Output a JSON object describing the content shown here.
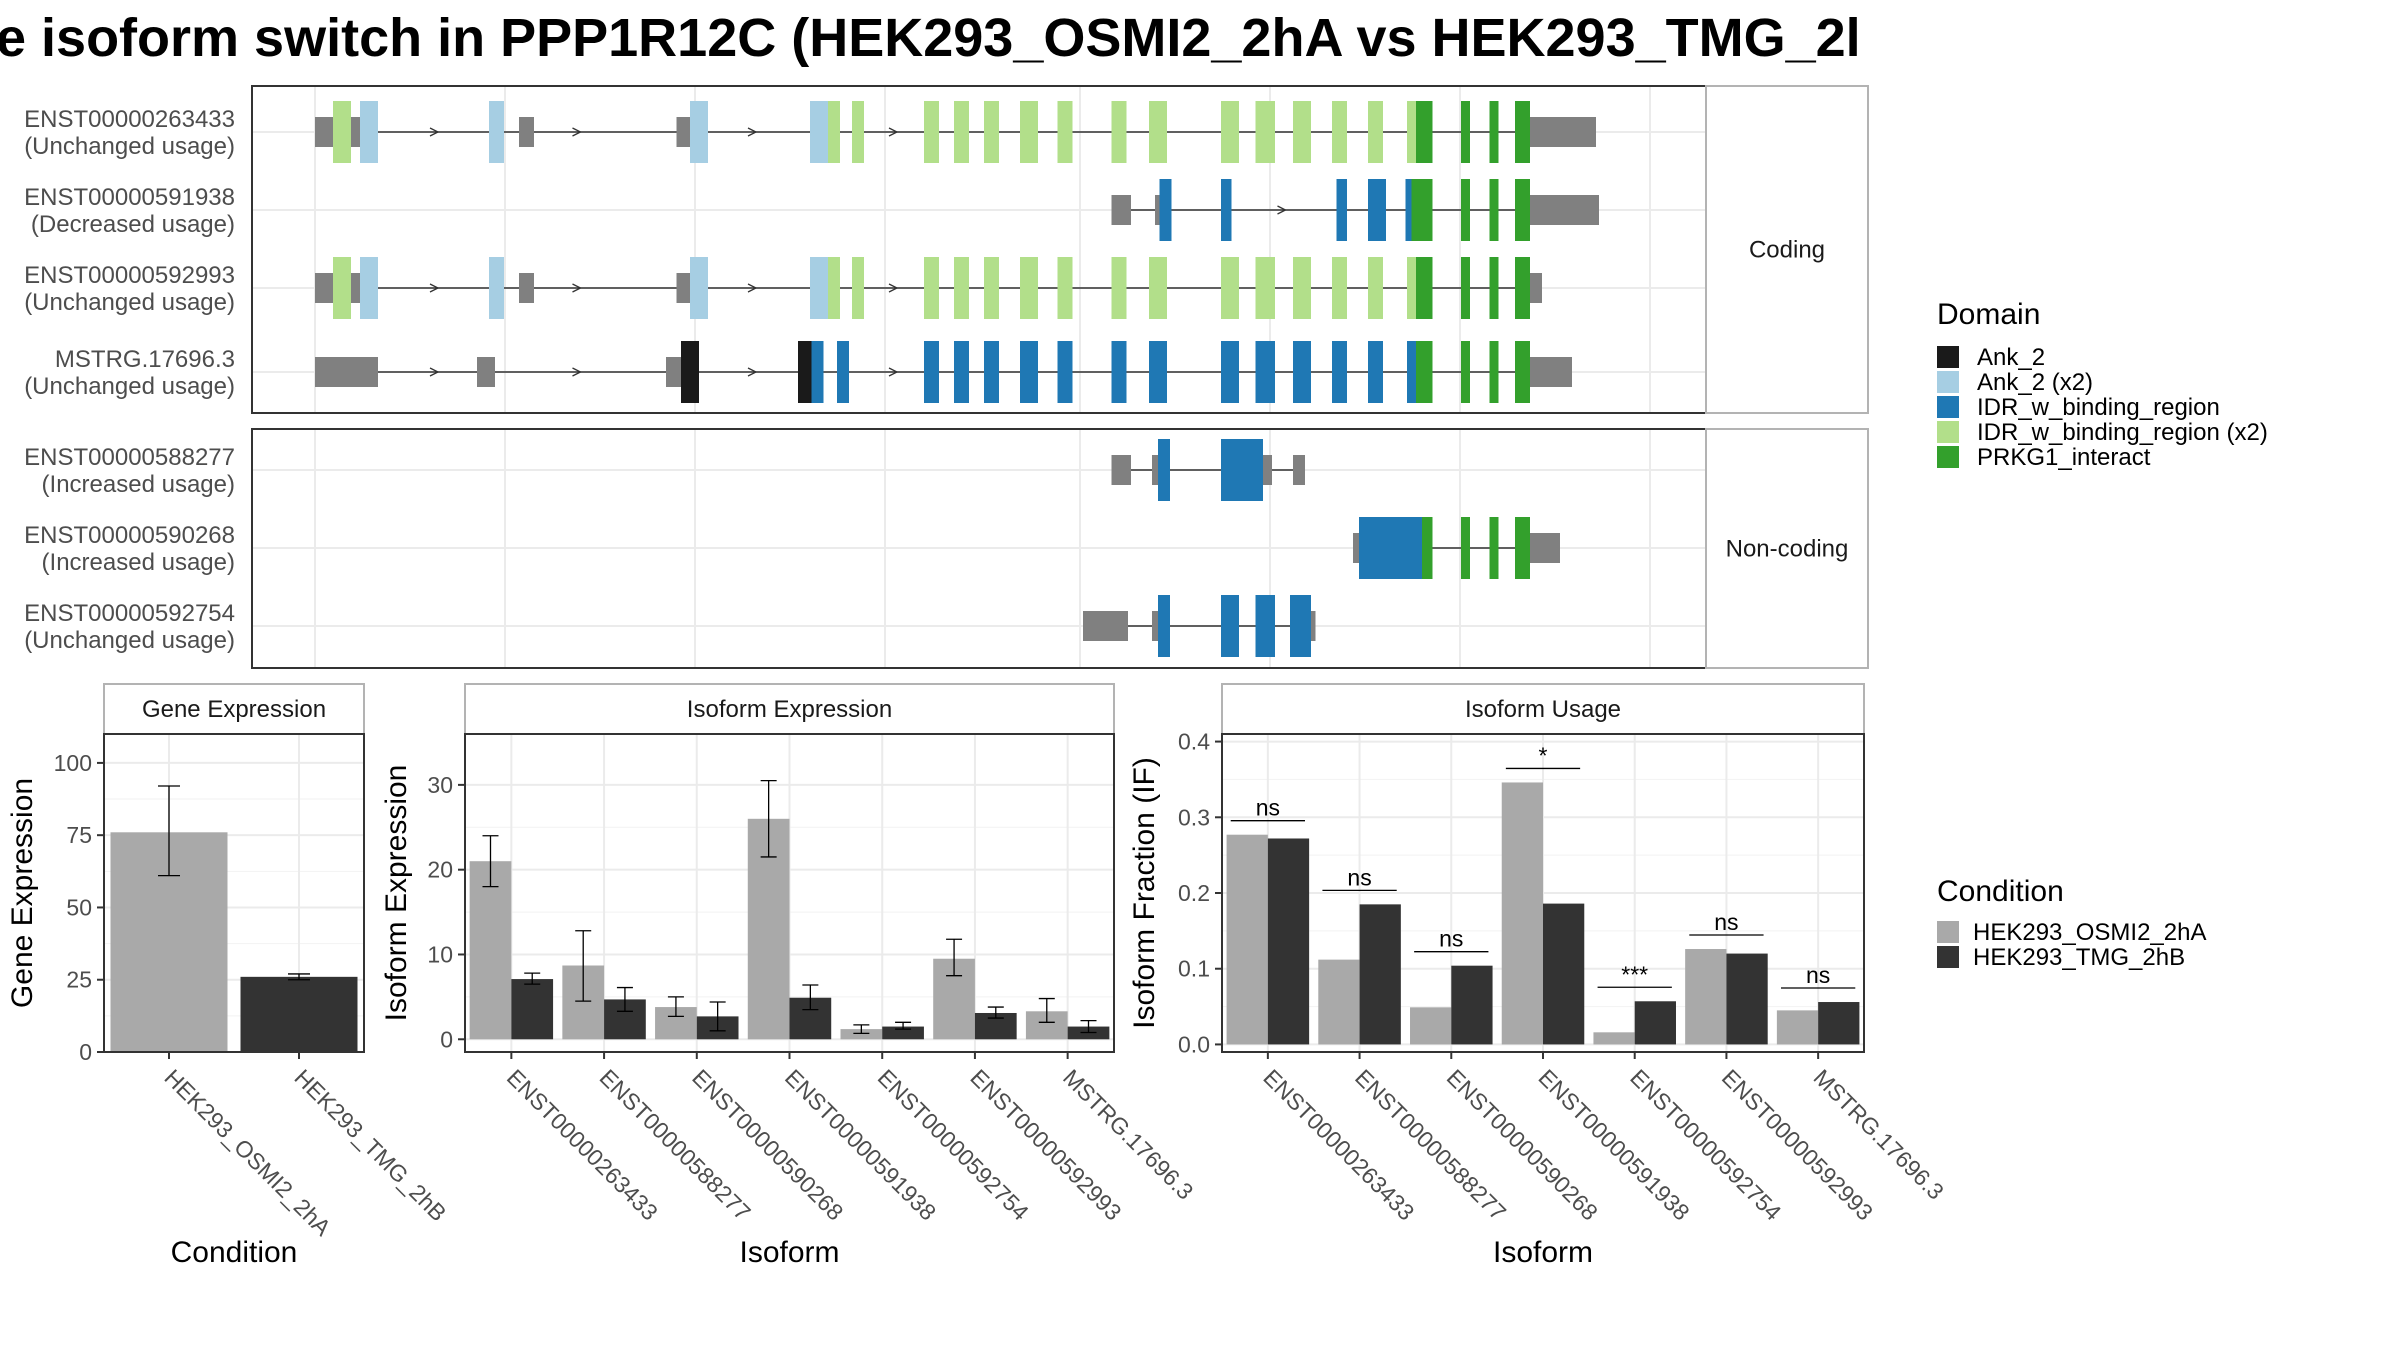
{
  "title": "e isoform switch in PPP1R12C (HEK293_OSMI2_2hA vs HEK293_TMG_2l",
  "colors": {
    "Ank_2": "#1a1a1a",
    "Ank_2 (x2)": "#a6cee3",
    "IDR_w_binding_region": "#1f78b4",
    "IDR_w_binding_region (x2)": "#b2df8a",
    "PRKG1_interact": "#33a02c",
    "utr": "#808080",
    "cond1": "#a9a9a9",
    "cond2": "#333333"
  },
  "transcripts": {
    "coding_strip_label": "Coding",
    "noncoding_strip_label": "Non-coding",
    "coding": [
      {
        "id": "ENST00000263433",
        "usage": "(Unchanged usage)",
        "blocks": [
          [
            0,
            12,
            "utr"
          ],
          [
            12,
            24,
            "IDR_w_binding_region (x2)"
          ],
          [
            24,
            30,
            "utr"
          ],
          [
            30,
            42,
            "Ank_2 (x2)"
          ],
          [
            116,
            126,
            "Ank_2 (x2)"
          ],
          [
            136,
            146,
            "utr"
          ],
          [
            241,
            250,
            "utr"
          ],
          [
            250,
            262,
            "Ank_2 (x2)"
          ],
          [
            330,
            342,
            "Ank_2 (x2)"
          ],
          [
            342,
            350,
            "IDR_w_binding_region (x2)"
          ],
          [
            358,
            366,
            "IDR_w_binding_region (x2)"
          ],
          [
            406,
            416,
            "IDR_w_binding_region (x2)"
          ],
          [
            426,
            436,
            "IDR_w_binding_region (x2)"
          ],
          [
            446,
            456,
            "IDR_w_binding_region (x2)"
          ],
          [
            470,
            482,
            "IDR_w_binding_region (x2)"
          ],
          [
            495,
            505,
            "IDR_w_binding_region (x2)"
          ],
          [
            531,
            541,
            "IDR_w_binding_region (x2)"
          ],
          [
            556,
            568,
            "IDR_w_binding_region (x2)"
          ],
          [
            604,
            616,
            "IDR_w_binding_region (x2)"
          ],
          [
            627,
            640,
            "IDR_w_binding_region (x2)"
          ],
          [
            652,
            664,
            "IDR_w_binding_region (x2)"
          ],
          [
            678,
            688,
            "IDR_w_binding_region (x2)"
          ],
          [
            702,
            712,
            "IDR_w_binding_region (x2)"
          ],
          [
            728,
            734,
            "IDR_w_binding_region (x2)"
          ],
          [
            734,
            745,
            "PRKG1_interact"
          ],
          [
            764,
            770,
            "PRKG1_interact"
          ],
          [
            783,
            789,
            "PRKG1_interact"
          ],
          [
            800,
            810,
            "PRKG1_interact"
          ],
          [
            810,
            854,
            "utr"
          ]
        ],
        "arrows": [
          80,
          175,
          292,
          386,
          410
        ]
      },
      {
        "id": "ENST00000591938",
        "usage": "(Decreased usage)",
        "blocks": [
          [
            531,
            544,
            "utr"
          ],
          [
            560,
            563,
            "utr"
          ],
          [
            563,
            571,
            "IDR_w_binding_region"
          ],
          [
            604,
            611,
            "IDR_w_binding_region"
          ],
          [
            681,
            688,
            "IDR_w_binding_region"
          ],
          [
            702,
            714,
            "IDR_w_binding_region"
          ],
          [
            727,
            731,
            "IDR_w_binding_region"
          ],
          [
            731,
            745,
            "PRKG1_interact"
          ],
          [
            764,
            770,
            "PRKG1_interact"
          ],
          [
            783,
            789,
            "PRKG1_interact"
          ],
          [
            800,
            810,
            "PRKG1_interact"
          ],
          [
            810,
            856,
            "utr"
          ]
        ],
        "arrows": [
          645
        ]
      },
      {
        "id": "ENST00000592993",
        "usage": "(Unchanged usage)",
        "blocks": [
          [
            0,
            12,
            "utr"
          ],
          [
            12,
            24,
            "IDR_w_binding_region (x2)"
          ],
          [
            24,
            30,
            "utr"
          ],
          [
            30,
            42,
            "Ank_2 (x2)"
          ],
          [
            116,
            126,
            "Ank_2 (x2)"
          ],
          [
            136,
            146,
            "utr"
          ],
          [
            241,
            250,
            "utr"
          ],
          [
            250,
            262,
            "Ank_2 (x2)"
          ],
          [
            330,
            342,
            "Ank_2 (x2)"
          ],
          [
            342,
            350,
            "IDR_w_binding_region (x2)"
          ],
          [
            358,
            366,
            "IDR_w_binding_region (x2)"
          ],
          [
            406,
            416,
            "IDR_w_binding_region (x2)"
          ],
          [
            426,
            436,
            "IDR_w_binding_region (x2)"
          ],
          [
            446,
            456,
            "IDR_w_binding_region (x2)"
          ],
          [
            470,
            482,
            "IDR_w_binding_region (x2)"
          ],
          [
            495,
            505,
            "IDR_w_binding_region (x2)"
          ],
          [
            531,
            541,
            "IDR_w_binding_region (x2)"
          ],
          [
            556,
            568,
            "IDR_w_binding_region (x2)"
          ],
          [
            604,
            616,
            "IDR_w_binding_region (x2)"
          ],
          [
            627,
            640,
            "IDR_w_binding_region (x2)"
          ],
          [
            652,
            664,
            "IDR_w_binding_region (x2)"
          ],
          [
            678,
            688,
            "IDR_w_binding_region (x2)"
          ],
          [
            702,
            712,
            "IDR_w_binding_region (x2)"
          ],
          [
            728,
            734,
            "IDR_w_binding_region (x2)"
          ],
          [
            734,
            745,
            "PRKG1_interact"
          ],
          [
            764,
            770,
            "PRKG1_interact"
          ],
          [
            783,
            789,
            "PRKG1_interact"
          ],
          [
            800,
            810,
            "PRKG1_interact"
          ],
          [
            810,
            818,
            "utr"
          ]
        ],
        "arrows": [
          80,
          175,
          292,
          386,
          410
        ]
      },
      {
        "id": "MSTRG.17696.3",
        "usage": "(Unchanged usage)",
        "blocks": [
          [
            0,
            42,
            "utr"
          ],
          [
            108,
            120,
            "utr"
          ],
          [
            234,
            244,
            "utr"
          ],
          [
            244,
            250,
            "Ank_2"
          ],
          [
            250,
            256,
            "Ank_2"
          ],
          [
            322,
            331,
            "Ank_2"
          ],
          [
            331,
            339,
            "IDR_w_binding_region"
          ],
          [
            348,
            356,
            "IDR_w_binding_region"
          ],
          [
            406,
            416,
            "IDR_w_binding_region"
          ],
          [
            426,
            436,
            "IDR_w_binding_region"
          ],
          [
            446,
            456,
            "IDR_w_binding_region"
          ],
          [
            470,
            482,
            "IDR_w_binding_region"
          ],
          [
            495,
            505,
            "IDR_w_binding_region"
          ],
          [
            531,
            541,
            "IDR_w_binding_region"
          ],
          [
            556,
            568,
            "IDR_w_binding_region"
          ],
          [
            604,
            616,
            "IDR_w_binding_region"
          ],
          [
            627,
            640,
            "IDR_w_binding_region"
          ],
          [
            652,
            664,
            "IDR_w_binding_region"
          ],
          [
            678,
            688,
            "IDR_w_binding_region"
          ],
          [
            702,
            712,
            "IDR_w_binding_region"
          ],
          [
            728,
            734,
            "IDR_w_binding_region"
          ],
          [
            734,
            745,
            "PRKG1_interact"
          ],
          [
            764,
            770,
            "PRKG1_interact"
          ],
          [
            783,
            789,
            "PRKG1_interact"
          ],
          [
            800,
            810,
            "PRKG1_interact"
          ],
          [
            810,
            838,
            "utr"
          ]
        ],
        "arrows": [
          80,
          175,
          292,
          386,
          410
        ]
      }
    ],
    "noncoding": [
      {
        "id": "ENST00000588277",
        "usage": "(Increased usage)",
        "blocks": [
          [
            531,
            544,
            "utr"
          ],
          [
            558,
            562,
            "utr"
          ],
          [
            562,
            570,
            "IDR_w_binding_region"
          ],
          [
            604,
            632,
            "IDR_w_binding_region"
          ],
          [
            632,
            638,
            "utr"
          ],
          [
            652,
            660,
            "utr"
          ]
        ],
        "arrows": []
      },
      {
        "id": "ENST00000590268",
        "usage": "(Increased usage)",
        "blocks": [
          [
            692,
            696,
            "utr"
          ],
          [
            696,
            738,
            "IDR_w_binding_region"
          ],
          [
            738,
            745,
            "PRKG1_interact"
          ],
          [
            764,
            770,
            "PRKG1_interact"
          ],
          [
            783,
            789,
            "PRKG1_interact"
          ],
          [
            800,
            810,
            "PRKG1_interact"
          ],
          [
            810,
            830,
            "utr"
          ]
        ],
        "arrows": []
      },
      {
        "id": "ENST00000592754",
        "usage": "(Unchanged usage)",
        "blocks": [
          [
            512,
            542,
            "utr"
          ],
          [
            558,
            562,
            "utr"
          ],
          [
            562,
            570,
            "IDR_w_binding_region"
          ],
          [
            604,
            616,
            "IDR_w_binding_region"
          ],
          [
            627,
            640,
            "IDR_w_binding_region"
          ],
          [
            650,
            664,
            "IDR_w_binding_region"
          ],
          [
            664,
            667,
            "utr"
          ]
        ],
        "arrows": []
      }
    ]
  },
  "legend_domain": {
    "title": "Domain",
    "items": [
      "Ank_2",
      "Ank_2 (x2)",
      "IDR_w_binding_region",
      "IDR_w_binding_region (x2)",
      "PRKG1_interact"
    ]
  },
  "legend_condition": {
    "title": "Condition",
    "items": [
      "HEK293_OSMI2_2hA",
      "HEK293_TMG_2hB"
    ]
  },
  "chart_data": [
    {
      "type": "bar",
      "title": "Gene Expression",
      "xlabel": "Condition",
      "ylabel": "Gene Expression",
      "categories": [
        "HEK293_OSMI2_2hA",
        "HEK293_TMG_2hB"
      ],
      "values": [
        76,
        26
      ],
      "error_low": [
        61,
        25
      ],
      "error_high": [
        92,
        27
      ],
      "ylim": [
        0,
        110
      ],
      "yticks": [
        0,
        25,
        50,
        75,
        100
      ]
    },
    {
      "type": "bar",
      "title": "Isoform Expression",
      "xlabel": "Isoform",
      "ylabel": "Isoform Expression",
      "categories": [
        "ENST00000263433",
        "ENST00000588277",
        "ENST00000590268",
        "ENST00000591938",
        "ENST00000592754",
        "ENST00000592993",
        "MSTRG.17696.3"
      ],
      "series": [
        {
          "name": "HEK293_OSMI2_2hA",
          "values": [
            21,
            8.7,
            3.8,
            26,
            1.2,
            9.5,
            3.3
          ],
          "error_low": [
            18,
            4.5,
            2.7,
            21.5,
            0.7,
            7.5,
            2
          ],
          "error_high": [
            24,
            12.8,
            5,
            30.5,
            1.7,
            11.8,
            4.8
          ]
        },
        {
          "name": "HEK293_TMG_2hB",
          "values": [
            7.1,
            4.7,
            2.7,
            4.9,
            1.5,
            3.1,
            1.5
          ],
          "error_low": [
            6.5,
            3.3,
            1,
            3.5,
            1.2,
            2.5,
            0.8
          ],
          "error_high": [
            7.8,
            6.1,
            4.4,
            6.4,
            2,
            3.8,
            2.2
          ]
        }
      ],
      "ylim": [
        -1.5,
        36
      ],
      "yticks": [
        0,
        10,
        20,
        30
      ]
    },
    {
      "type": "bar",
      "title": "Isoform Usage",
      "xlabel": "Isoform",
      "ylabel": "Isoform Fraction (IF)",
      "categories": [
        "ENST00000263433",
        "ENST00000588277",
        "ENST00000590268",
        "ENST00000591938",
        "ENST00000592754",
        "ENST00000592993",
        "MSTRG.17696.3"
      ],
      "series": [
        {
          "name": "HEK293_OSMI2_2hA",
          "values": [
            0.277,
            0.112,
            0.049,
            0.346,
            0.016,
            0.126,
            0.045
          ]
        },
        {
          "name": "HEK293_TMG_2hB",
          "values": [
            0.272,
            0.185,
            0.104,
            0.186,
            0.057,
            0.12,
            0.056
          ]
        }
      ],
      "significance": [
        "ns",
        "ns",
        "ns",
        "*",
        "***",
        "ns",
        "ns"
      ],
      "ylim": [
        -0.01,
        0.41
      ],
      "yticks": [
        0.0,
        0.1,
        0.2,
        0.3,
        0.4
      ],
      "ytick_labels": [
        "0.0",
        "0.1",
        "0.2",
        "0.3",
        "0.4"
      ]
    }
  ]
}
